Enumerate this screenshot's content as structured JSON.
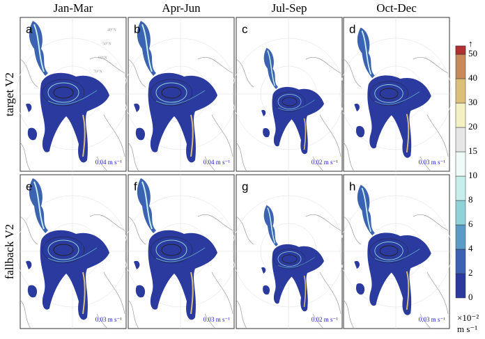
{
  "columns": [
    "Jan-Mar",
    "Apr-Jun",
    "Jul-Sep",
    "Oct-Dec"
  ],
  "rows": [
    "target V2",
    "fallback V2"
  ],
  "panels": [
    [
      {
        "letter": "a",
        "scale": "0.04 m s⁻¹"
      },
      {
        "letter": "b",
        "scale": "0.04 m s⁻¹"
      },
      {
        "letter": "c",
        "scale": "0.02 m s⁻¹"
      },
      {
        "letter": "d",
        "scale": "0.03 m s⁻¹"
      }
    ],
    [
      {
        "letter": "e",
        "scale": "0.03 m s⁻¹"
      },
      {
        "letter": "f",
        "scale": "0.03 m s⁻¹"
      },
      {
        "letter": "g",
        "scale": "0.02 m s⁻¹"
      },
      {
        "letter": "h",
        "scale": "0.03 m s⁻¹"
      }
    ]
  ],
  "latitude_labels": [
    "40°N",
    "50°N",
    "60°N",
    "70°N"
  ],
  "colorbar": {
    "ticks": [
      0,
      2,
      4,
      6,
      8,
      10,
      15,
      20,
      30,
      40,
      50
    ],
    "top": "↑",
    "multiplier": "×10⁻²",
    "unit": "m s⁻¹",
    "colors": [
      "#2b3a9e",
      "#3c62b3",
      "#5a9cc6",
      "#8fd2d8",
      "#c6eeea",
      "#eefbf8",
      "#e6e6e6",
      "#f3f0c2",
      "#dcc07a",
      "#c98a5a",
      "#bd6a50",
      "#b23030"
    ]
  }
}
